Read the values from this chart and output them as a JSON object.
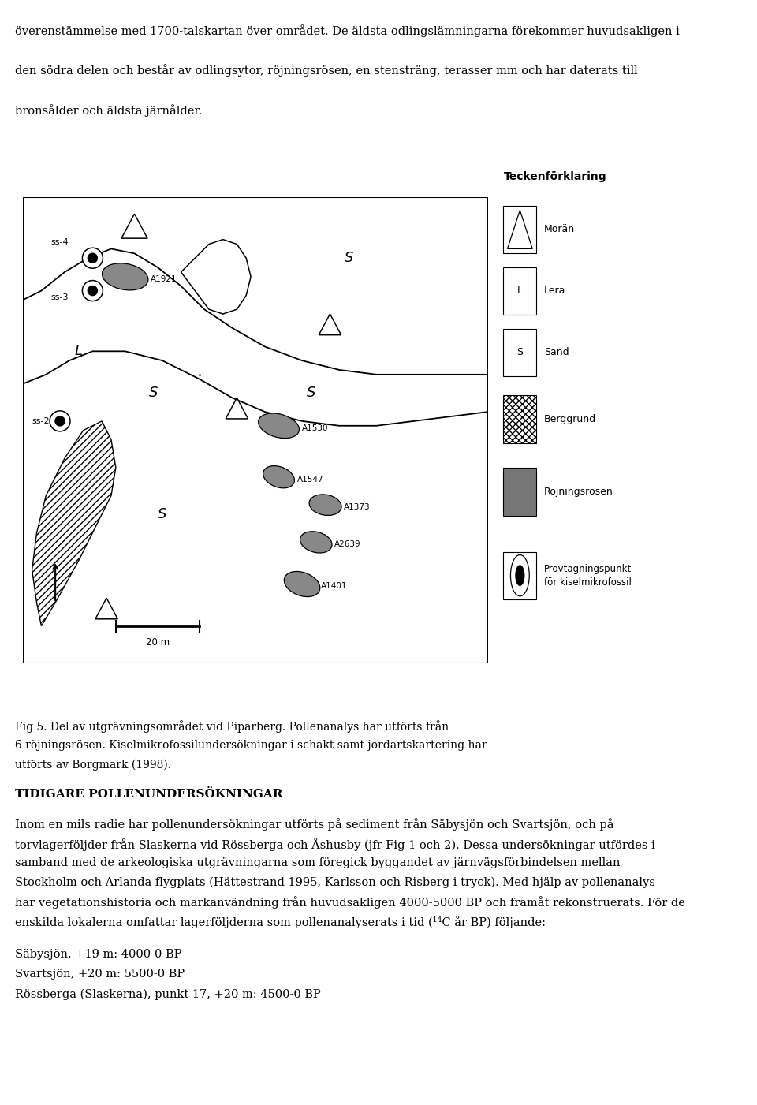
{
  "top_text_line1": "överenstämmelse med 1700-talskartan över området. De äldsta odlingslämningarna förekommer huvudsakligen i",
  "top_text_line2": "den södra delen och består av odlingsytor, röjningsrösen, en stensträng, terasser mm och har daterats till",
  "top_text_line3": "bronsålder och äldsta järnålder.",
  "fig_caption_line1": "Fig 5. Del av utgrävningsområdet vid Piparberg. Pollenanalys har utförts från",
  "fig_caption_line2": "6 röjningsrösen. Kiselmikrofossilundersökningar i schakt samt jordartskartering har",
  "fig_caption_line3": "utförts av Borgmark (1998).",
  "bottom_title": "TIDIGARE POLLENUNDERSÖKNINGAR",
  "bottom_para_line1": "Inom en mils radie har pollenundersökningar utförts på sediment från Säbysjön och Svartsjön, och på",
  "bottom_para_line2": "torvlagerföljder från Slaskerna vid Rössberga och Åshusby (jfr Fig 1 och 2). Dessa undersökningar utfördes i",
  "bottom_para_line3": "samband med de arkeologiska utgrävningarna som föregick byggandet av järnvägsförbindelsen mellan",
  "bottom_para_line4": "Stockholm och Arlanda flygplats (Hättestrand 1995, Karlsson och Risberg i tryck). Med hjälp av pollenanalys",
  "bottom_para_line5": "har vegetationshistoria och markanvändning från huvudsakligen 4000-5000 BP och framåt rekonstruerats. För de",
  "bottom_para_line6": "enskilda lokalerna omfattar lagerföljderna som pollenanalyserats i tid (¹⁴C år BP) följande:",
  "bottom_list_1": "Säbysjön, +19 m: 4000-0 BP",
  "bottom_list_2": "Svartsjön, +20 m: 5500-0 BP",
  "bottom_list_3": "Rössberga (Slaskerna), punkt 17, +20 m: 4500-0 BP",
  "legend_title": "Teckenförklaring",
  "bg_color": "#ffffff"
}
